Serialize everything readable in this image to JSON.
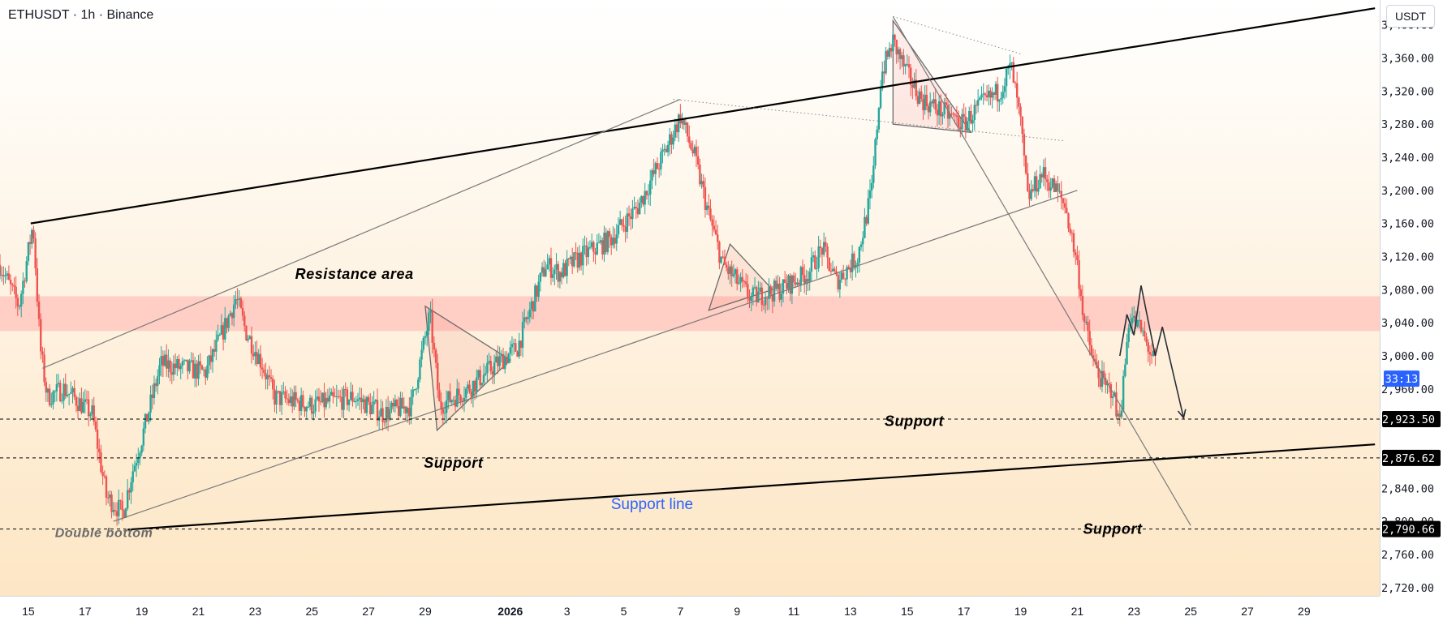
{
  "header": {
    "symbol_line": "ETHUSDT · 1h · Binance",
    "currency_button": "USDT"
  },
  "colors": {
    "up": "#26a69a",
    "down": "#ef5350",
    "resistance_zone": "#ffc8c0",
    "bg_top": "#ffffff",
    "bg_bottom": "#fde6c4",
    "text": "#131722",
    "accent_blue": "#2962ff"
  },
  "chart_data": {
    "type": "candlestick",
    "symbol": "ETHUSDT",
    "interval": "1h",
    "exchange": "Binance",
    "currency": "USDT",
    "y_ticks": [
      3400,
      3360,
      3320,
      3280,
      3240,
      3200,
      3160,
      3120,
      3080,
      3040,
      3000,
      2960,
      2840,
      2800,
      2760,
      2720
    ],
    "y_tick_labels": [
      "3,400.00",
      "3,360.00",
      "3,320.00",
      "3,280.00",
      "3,240.00",
      "3,200.00",
      "3,160.00",
      "3,120.00",
      "3,080.00",
      "3,040.00",
      "3,000.00",
      "2,960.00",
      "2,840.00",
      "2,800.00",
      "2,760.00",
      "2,720.00"
    ],
    "ylim": [
      2710,
      3430
    ],
    "x_dates": [
      "2025-12-15",
      "2025-12-17",
      "2025-12-19",
      "2025-12-21",
      "2025-12-23",
      "2025-12-25",
      "2025-12-27",
      "2025-12-29",
      "2026-01-01",
      "2026-01-03",
      "2026-01-05",
      "2026-01-07",
      "2026-01-09",
      "2026-01-11",
      "2026-01-13",
      "2026-01-15",
      "2026-01-17",
      "2026-01-19",
      "2026-01-21",
      "2026-01-23",
      "2026-01-25",
      "2026-01-27",
      "2026-01-29"
    ],
    "x_tick_labels": [
      "15",
      "17",
      "19",
      "21",
      "23",
      "25",
      "27",
      "29",
      "2026",
      "3",
      "5",
      "7",
      "9",
      "11",
      "13",
      "15",
      "17",
      "19",
      "21",
      "23",
      "25",
      "27",
      "29"
    ],
    "xlim": [
      "2025-12-14 00:00",
      "2026-01-31 16:00"
    ],
    "price_path": [
      [
        "2025-12-14 00:00",
        3110
      ],
      [
        "2025-12-14 16:00",
        3060
      ],
      [
        "2025-12-15 04:00",
        3160
      ],
      [
        "2025-12-15 10:00",
        3010
      ],
      [
        "2025-12-15 16:00",
        2950
      ],
      [
        "2025-12-16 06:00",
        2960
      ],
      [
        "2025-12-17 06:00",
        2930
      ],
      [
        "2025-12-17 18:00",
        2830
      ],
      [
        "2025-12-18 08:00",
        2810
      ],
      [
        "2025-12-18 16:00",
        2860
      ],
      [
        "2025-12-19 00:00",
        2900
      ],
      [
        "2025-12-19 16:00",
        2990
      ],
      [
        "2025-12-21 06:00",
        2980
      ],
      [
        "2025-12-21 18:00",
        3020
      ],
      [
        "2025-12-22 08:00",
        3070
      ],
      [
        "2025-12-22 16:00",
        3030
      ],
      [
        "2025-12-23 06:00",
        2990
      ],
      [
        "2025-12-23 16:00",
        2950
      ],
      [
        "2025-12-25 00:00",
        2940
      ],
      [
        "2025-12-26 12:00",
        2950
      ],
      [
        "2025-12-27 12:00",
        2930
      ],
      [
        "2025-12-28 12:00",
        2940
      ],
      [
        "2025-12-29 04:00",
        3050
      ],
      [
        "2025-12-29 12:00",
        2940
      ],
      [
        "2025-12-30 12:00",
        2960
      ],
      [
        "2025-12-31 12:00",
        2990
      ],
      [
        "2026-01-01 06:00",
        3010
      ],
      [
        "2026-01-02 06:00",
        3110
      ],
      [
        "2026-01-02 18:00",
        3100
      ],
      [
        "2026-01-03 12:00",
        3120
      ],
      [
        "2026-01-04 12:00",
        3140
      ],
      [
        "2026-01-05 12:00",
        3180
      ],
      [
        "2026-01-06 12:00",
        3250
      ],
      [
        "2026-01-07 00:00",
        3290
      ],
      [
        "2026-01-07 12:00",
        3240
      ],
      [
        "2026-01-08 00:00",
        3170
      ],
      [
        "2026-01-08 12:00",
        3110
      ],
      [
        "2026-01-09 00:00",
        3090
      ],
      [
        "2026-01-09 12:00",
        3070
      ],
      [
        "2026-01-10 12:00",
        3080
      ],
      [
        "2026-01-11 12:00",
        3100
      ],
      [
        "2026-01-12 00:00",
        3130
      ],
      [
        "2026-01-12 12:00",
        3090
      ],
      [
        "2026-01-13 06:00",
        3120
      ],
      [
        "2026-01-13 18:00",
        3200
      ],
      [
        "2026-01-14 02:00",
        3340
      ],
      [
        "2026-01-14 12:00",
        3380
      ],
      [
        "2026-01-15 00:00",
        3340
      ],
      [
        "2026-01-15 12:00",
        3310
      ],
      [
        "2026-01-16 12:00",
        3290
      ],
      [
        "2026-01-17 00:00",
        3280
      ],
      [
        "2026-01-17 12:00",
        3300
      ],
      [
        "2026-01-18 06:00",
        3320
      ],
      [
        "2026-01-18 16:00",
        3350
      ],
      [
        "2026-01-19 00:00",
        3280
      ],
      [
        "2026-01-19 06:00",
        3190
      ],
      [
        "2026-01-19 18:00",
        3220
      ],
      [
        "2026-01-20 06:00",
        3200
      ],
      [
        "2026-01-20 14:00",
        3180
      ],
      [
        "2026-01-21 00:00",
        3110
      ],
      [
        "2026-01-21 06:00",
        3040
      ],
      [
        "2026-01-21 14:00",
        2990
      ],
      [
        "2026-01-22 00:00",
        2960
      ],
      [
        "2026-01-22 06:00",
        2960
      ],
      [
        "2026-01-22 10:00",
        2920
      ],
      [
        "2026-01-22 14:00",
        2950
      ],
      [
        "2026-01-22 20:00",
        3050
      ],
      [
        "2026-01-23 06:00",
        3030
      ],
      [
        "2026-01-23 18:00",
        2990
      ]
    ],
    "lines": [
      {
        "kind": "trend-thick",
        "from": [
          "2025-12-15 02:00",
          3160
        ],
        "to": [
          "2026-01-31 12:00",
          3420
        ]
      },
      {
        "kind": "trend-thick",
        "from": [
          "2025-12-18 12:00",
          2790
        ],
        "to": [
          "2026-01-31 12:00",
          2893
        ]
      },
      {
        "kind": "channel-thin",
        "from": [
          "2025-12-15 12:00",
          2985
        ],
        "to": [
          "2026-01-07 00:00",
          3310
        ]
      },
      {
        "kind": "channel-thin",
        "from": [
          "2025-12-18 00:00",
          2800
        ],
        "to": [
          "2026-01-21 00:00",
          3200
        ]
      },
      {
        "kind": "channel-thin",
        "from": [
          "2026-01-14 12:00",
          3410
        ],
        "to": [
          "2026-01-25 00:00",
          2795
        ]
      },
      {
        "kind": "dotted",
        "from": [
          "2026-01-06 18:00",
          3310
        ],
        "to": [
          "2026-01-20 12:00",
          3260
        ]
      },
      {
        "kind": "dotted",
        "from": [
          "2026-01-14 12:00",
          3410
        ],
        "to": [
          "2026-01-19 00:00",
          3365
        ]
      }
    ],
    "triangles": [
      [
        [
          "2025-12-29 00:00",
          3060
        ],
        [
          "2025-12-29 10:00",
          2910
        ],
        [
          "2026-01-01 00:00",
          2995
        ]
      ],
      [
        [
          "2026-01-08 18:00",
          3135
        ],
        [
          "2026-01-08 00:00",
          3055
        ],
        [
          "2026-01-10 06:00",
          3080
        ]
      ],
      [
        [
          "2026-01-14 12:00",
          3405
        ],
        [
          "2026-01-14 12:00",
          3280
        ],
        [
          "2026-01-17 06:00",
          3270
        ]
      ]
    ],
    "forecast_path": [
      [
        "2026-01-22 12:00",
        3000
      ],
      [
        "2026-01-22 18:00",
        3050
      ],
      [
        "2026-01-23 00:00",
        3025
      ],
      [
        "2026-01-23 06:00",
        3085
      ],
      [
        "2026-01-23 18:00",
        3000
      ],
      [
        "2026-01-24 00:00",
        3035
      ],
      [
        "2026-01-24 18:00",
        2925
      ]
    ],
    "resistance_zone": {
      "low": 3030,
      "high": 3072
    },
    "horizontal_levels": [
      {
        "price": 2923.5,
        "label": "2,923.50"
      },
      {
        "price": 2876.62,
        "label": "2,876.62"
      },
      {
        "price": 2790.66,
        "label": "2,790.66"
      }
    ],
    "current_price_tag": {
      "price": 2991,
      "label": "33:13"
    },
    "annotations": [
      {
        "text": "Resistance area",
        "x": "2025-12-26 12:00",
        "y": 3093,
        "style": "bold-italic"
      },
      {
        "text": "Support",
        "x": "2025-12-30 00:00",
        "y": 2865,
        "style": "bold-italic"
      },
      {
        "text": "Support",
        "x": "2026-01-15 06:00",
        "y": 2915,
        "style": "bold-italic"
      },
      {
        "text": "Support",
        "x": "2026-01-22 06:00",
        "y": 2785,
        "style": "bold-italic"
      },
      {
        "text": "Double bottom",
        "x": "2025-12-17 16:00",
        "y": 2781,
        "style": "bold-italic"
      },
      {
        "text": "Support line",
        "x": "2026-01-06 00:00",
        "y": 2815,
        "style": "blue"
      }
    ]
  }
}
